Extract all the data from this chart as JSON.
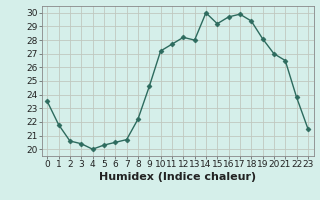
{
  "x": [
    0,
    1,
    2,
    3,
    4,
    5,
    6,
    7,
    8,
    9,
    10,
    11,
    12,
    13,
    14,
    15,
    16,
    17,
    18,
    19,
    20,
    21,
    22,
    23
  ],
  "y": [
    23.5,
    21.8,
    20.6,
    20.4,
    20.0,
    20.3,
    20.5,
    20.7,
    22.2,
    24.6,
    27.2,
    27.7,
    28.2,
    28.0,
    30.0,
    29.2,
    29.7,
    29.9,
    29.4,
    28.1,
    27.0,
    26.5,
    23.8,
    21.5
  ],
  "line_color": "#2d6b5e",
  "marker": "D",
  "marker_size": 2.5,
  "xlabel": "Humidex (Indice chaleur)",
  "xlim": [
    -0.5,
    23.5
  ],
  "ylim": [
    19.5,
    30.5
  ],
  "yticks": [
    20,
    21,
    22,
    23,
    24,
    25,
    26,
    27,
    28,
    29,
    30
  ],
  "xticks": [
    0,
    1,
    2,
    3,
    4,
    5,
    6,
    7,
    8,
    9,
    10,
    11,
    12,
    13,
    14,
    15,
    16,
    17,
    18,
    19,
    20,
    21,
    22,
    23
  ],
  "bg_color": "#d5efea",
  "plot_bg_color": "#d5efea",
  "grid_color": "#c0c8c0",
  "tick_fontsize": 6.5,
  "xlabel_fontsize": 8,
  "line_width": 1.0
}
